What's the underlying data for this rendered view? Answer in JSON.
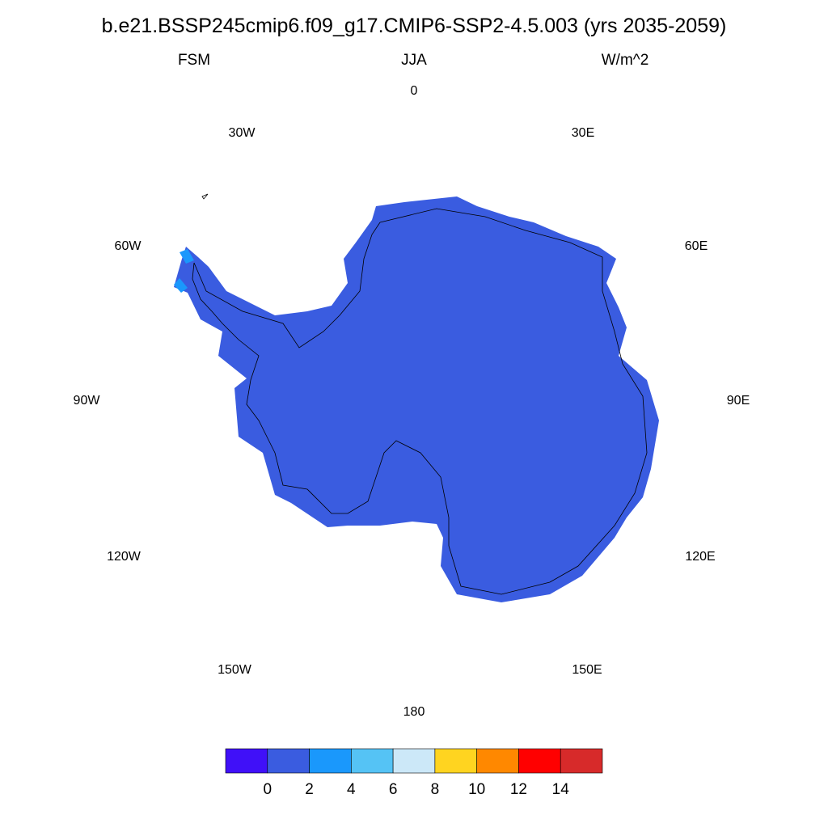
{
  "title": "b.e21.BSSP245cmip6.f09_g17.CMIP6-SSP2-4.5.003 (yrs 2035-2059)",
  "left_subtitle": "FSM",
  "center_subtitle": "JJA",
  "right_subtitle": "W/m^2",
  "projection": "south polar stereographic",
  "longitude_labels": [
    "0",
    "30E",
    "60E",
    "90E",
    "120E",
    "150E",
    "180",
    "150W",
    "120W",
    "90W",
    "60W",
    "30W"
  ],
  "field": {
    "dominant_bin": "0-2",
    "dominant_color": "#3a5ce0",
    "minor_bin": "2-4",
    "minor_color": "#1a98fc"
  },
  "colorbar": {
    "labels": [
      "0",
      "2",
      "4",
      "6",
      "8",
      "10",
      "12",
      "14"
    ],
    "colors": [
      "#4010f8",
      "#3a5ce0",
      "#1a98fc",
      "#55c3f5",
      "#cce8f8",
      "#ffd420",
      "#ff8800",
      "#ff0000",
      "#d72a2a"
    ]
  }
}
